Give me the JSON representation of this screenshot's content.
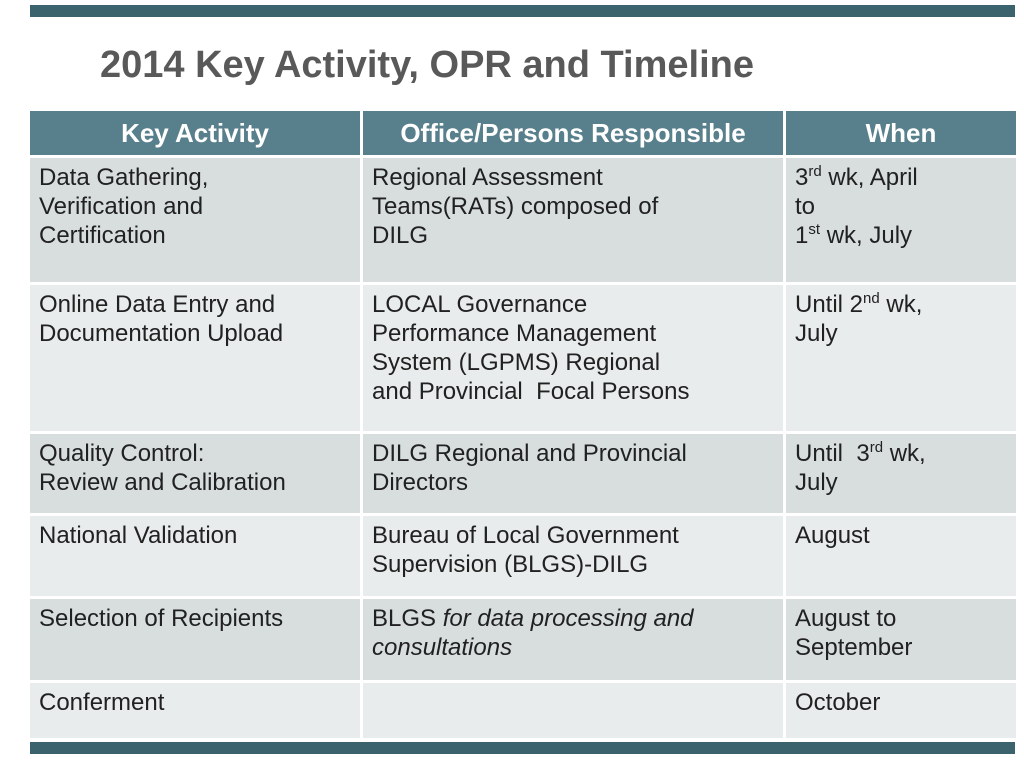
{
  "page": {
    "title": "2014 Key Activity, OPR and Timeline"
  },
  "theme": {
    "bar_color": "#3a636e",
    "header_bg": "#587f8c",
    "header_text": "#ffffff",
    "row_dark": "#d8dede",
    "row_light": "#e9ecec",
    "cell_text": "#212121",
    "title_color": "#595959"
  },
  "table": {
    "headers": [
      "Key Activity",
      "Office/Persons Responsible",
      "When"
    ],
    "rows": [
      {
        "cells": [
          [
            {
              "t": "Data Gathering,\nVerification and\nCertification"
            }
          ],
          [
            {
              "t": "Regional Assessment\nTeams(RATs) composed of\nDILG"
            }
          ],
          [
            {
              "t": "3"
            },
            {
              "t": "rd",
              "sup": true
            },
            {
              "t": " wk, April\nto\n1"
            },
            {
              "t": "st",
              "sup": true
            },
            {
              "t": " wk, July"
            }
          ]
        ]
      },
      {
        "cells": [
          [
            {
              "t": "Online Data Entry and\nDocumentation Upload"
            }
          ],
          [
            {
              "t": "LOCAL Governance\nPerformance Management\nSystem (LGPMS) Regional\nand Provincial  Focal Persons"
            }
          ],
          [
            {
              "t": "Until 2"
            },
            {
              "t": "nd",
              "sup": true
            },
            {
              "t": " wk,\nJuly"
            }
          ]
        ]
      },
      {
        "cells": [
          [
            {
              "t": "Quality Control:\nReview and Calibration"
            }
          ],
          [
            {
              "t": "DILG Regional and Provincial\nDirectors"
            }
          ],
          [
            {
              "t": "Until  3"
            },
            {
              "t": "rd",
              "sup": true
            },
            {
              "t": " wk,\nJuly"
            }
          ]
        ]
      },
      {
        "cells": [
          [
            {
              "t": "National Validation"
            }
          ],
          [
            {
              "t": "Bureau of Local Government\nSupervision (BLGS)-DILG"
            }
          ],
          [
            {
              "t": "August"
            }
          ]
        ]
      },
      {
        "cells": [
          [
            {
              "t": "Selection of Recipients"
            }
          ],
          [
            {
              "t": "BLGS "
            },
            {
              "t": "for data processing and\nconsultations",
              "italic": true
            }
          ],
          [
            {
              "t": "August to\nSeptember"
            }
          ]
        ]
      },
      {
        "cells": [
          [
            {
              "t": "Conferment"
            }
          ],
          [],
          [
            {
              "t": "October"
            }
          ]
        ]
      }
    ]
  }
}
